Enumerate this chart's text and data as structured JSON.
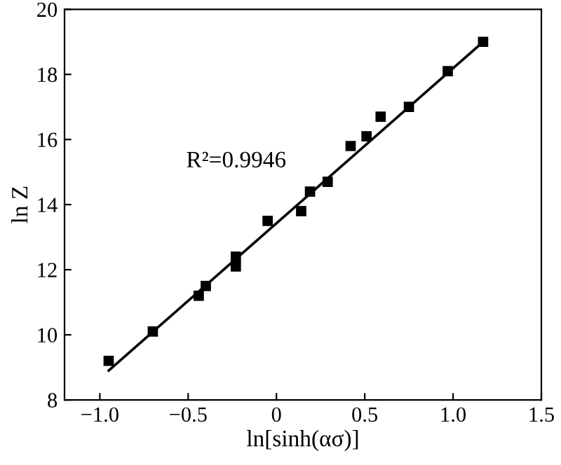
{
  "chart_data": {
    "type": "scatter",
    "xlabel": "ln[sinh(ασ)]",
    "ylabel": "ln Z",
    "xlim": [
      -1.2,
      1.5
    ],
    "xticks": [
      {
        "value": -1.0,
        "label": "−1.0"
      },
      {
        "value": -0.5,
        "label": "−0.5"
      },
      0,
      0.5,
      {
        "value": 1.0,
        "label": "1.0"
      },
      1.5
    ],
    "ylim": [
      8,
      20
    ],
    "yticks": [
      8,
      10,
      12,
      14,
      16,
      18,
      20
    ],
    "grid": false,
    "legend": false,
    "annotations": [
      "R²=0.9946"
    ],
    "series": [
      {
        "marker": "square",
        "color": "#000000",
        "x": [
          -0.95,
          -0.7,
          -0.44,
          -0.4,
          -0.23,
          -0.23,
          -0.05,
          0.14,
          0.19,
          0.29,
          0.42,
          0.51,
          0.59,
          0.75,
          0.97,
          1.17
        ],
        "values": [
          9.2,
          10.1,
          11.2,
          11.5,
          12.1,
          12.4,
          13.5,
          13.8,
          14.4,
          14.7,
          15.8,
          16.1,
          16.7,
          17.0,
          18.1,
          19.0
        ]
      },
      {
        "type": "line",
        "color": "#000000",
        "line_style": "solid",
        "x": [
          -0.95,
          1.17
        ],
        "values": [
          8.9,
          19.0
        ]
      }
    ]
  }
}
